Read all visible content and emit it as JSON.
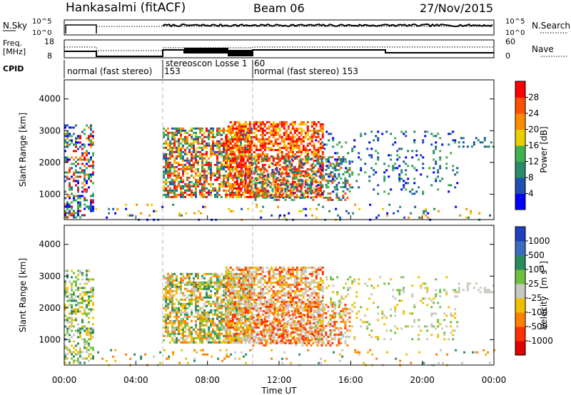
{
  "header": {
    "title": "Hankasalmi (fitACF)",
    "beam": "Beam 06",
    "date": "27/Nov/2015"
  },
  "chart_data": [
    {
      "type": "line",
      "panel": "noise",
      "left_label": "N.Sky",
      "right_label": "N.Search",
      "left_ticks": [
        "10^5",
        "10^0"
      ],
      "right_ticks": [
        "10^5",
        "10^0"
      ]
    },
    {
      "type": "line",
      "panel": "frequency",
      "left_label_lines": [
        "Freq.",
        "[MHz]"
      ],
      "right_label": "Nave",
      "left_ticks": [
        "18",
        "8"
      ],
      "right_ticks": [
        "60",
        "0"
      ]
    },
    {
      "type": "table",
      "panel": "cpid",
      "label": "CPID",
      "segments": [
        {
          "label": "normal (fast stereo)",
          "start_h": 0.0,
          "end_h": 5.5
        },
        {
          "label": "153",
          "start_h": 5.5,
          "end_h": 5.5
        },
        {
          "label": "stereoscon Losse 1",
          "start_h": 5.5,
          "end_h": 10.5
        },
        {
          "label": "60",
          "start_h": 10.5,
          "end_h": 10.5
        },
        {
          "label": "normal (fast stereo) 153",
          "start_h": 10.5,
          "end_h": 24.0
        }
      ]
    },
    {
      "type": "heatmap",
      "panel": "power",
      "ylabel": "Slant Range [km]",
      "xlabel": "",
      "yticks": [
        1000,
        2000,
        3000,
        4000
      ],
      "ylim": [
        200,
        4600
      ],
      "colorbar_label": "Power [dB]",
      "colorbar_ticks": [
        4,
        8,
        12,
        16,
        20,
        24,
        28
      ],
      "colorbar_colors": [
        "#0000ff",
        "#1f4fb0",
        "#2a8a6a",
        "#40b050",
        "#e8d000",
        "#ff8c00",
        "#ff5000",
        "#ff0000"
      ]
    },
    {
      "type": "heatmap",
      "panel": "velocity",
      "ylabel": "Slant Range [km]",
      "xlabel": "Time UT",
      "yticks": [
        1000,
        2000,
        3000,
        4000
      ],
      "ylim": [
        200,
        4600
      ],
      "xlim": [
        0,
        24
      ],
      "xticks": [
        "00:00",
        "04:00",
        "08:00",
        "12:00",
        "16:00",
        "20:00",
        "00:00"
      ],
      "colorbar_label": "Velocity",
      "colorbar_unit": "[m s",
      "colorbar_unit_sup": "-1",
      "colorbar_unit_end": "]",
      "colorbar_ticks": [
        "1000",
        "500",
        "100",
        "25",
        "-25",
        "-100",
        "-500",
        "-1000"
      ],
      "colorbar_colors": [
        "#2040c0",
        "#3c6cc0",
        "#2a8a60",
        "#70c040",
        "#c8c8c0",
        "#f0c000",
        "#ff8000",
        "#ff3000",
        "#e00000"
      ]
    }
  ]
}
